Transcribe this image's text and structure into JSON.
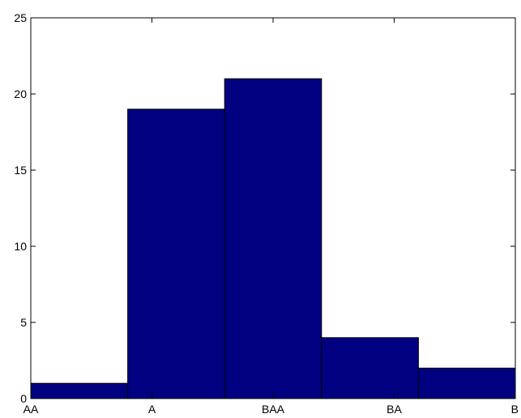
{
  "chart_data": {
    "type": "bar",
    "categories": [
      "AA",
      "A",
      "BAA",
      "BA",
      "B"
    ],
    "bin_edges": [
      "AA",
      "A",
      "BAA",
      "BA",
      "B"
    ],
    "values": [
      1,
      19,
      21,
      4,
      2
    ],
    "title": "",
    "xlabel": "",
    "ylabel": "",
    "ylim": [
      0,
      25
    ],
    "yticks": [
      "0",
      "5",
      "10",
      "15",
      "20",
      "25"
    ],
    "grid": false,
    "bar_color": "#000080",
    "bar_edge_color": "#000000"
  }
}
